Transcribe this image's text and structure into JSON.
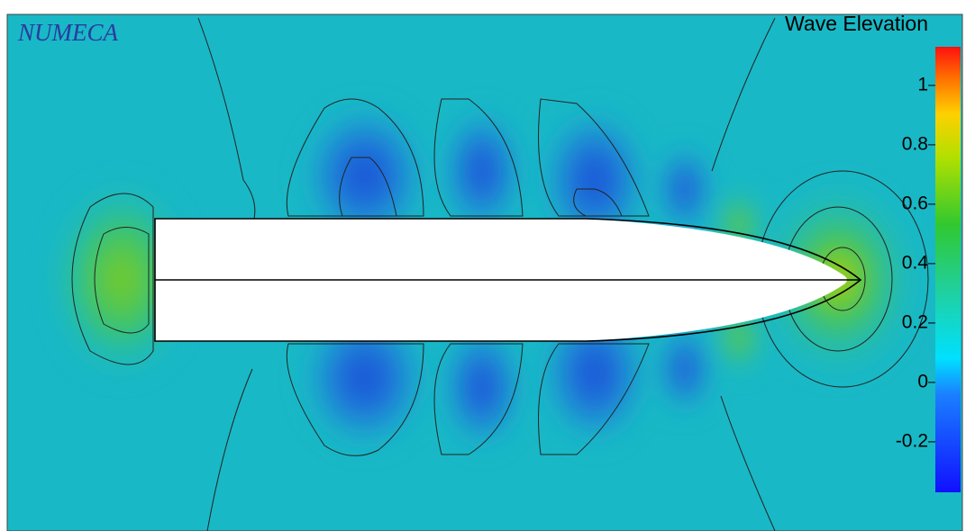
{
  "chart_data": {
    "type": "contour",
    "title": "Wave Elevation",
    "annotations": [
      "NUMECA"
    ],
    "colorbar": {
      "lim": [
        -0.37,
        1.13
      ],
      "ticks": [
        -0.2,
        0,
        0.2,
        0.4,
        0.6,
        0.8,
        1
      ]
    }
  }
}
